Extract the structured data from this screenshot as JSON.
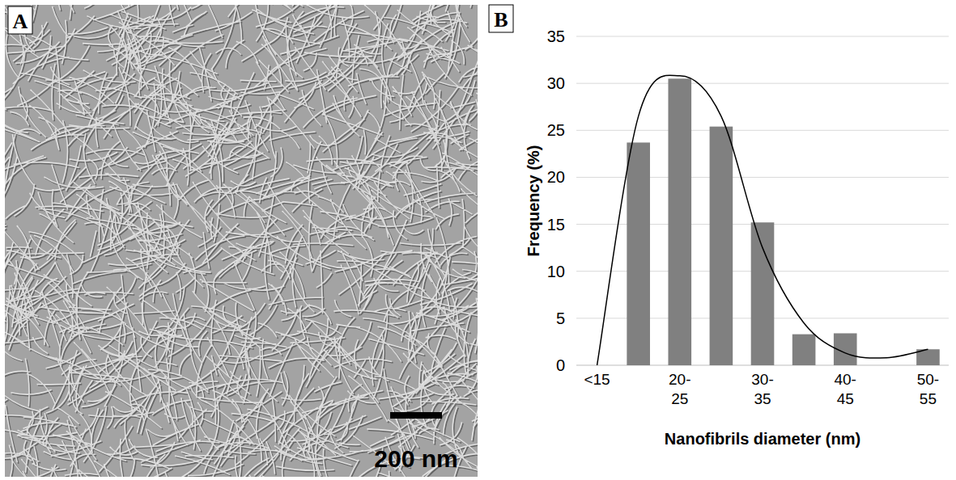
{
  "image_panel": {
    "label": "A",
    "scale_bar_label": "200 nm"
  },
  "chart_data": {
    "type": "bar",
    "label": "B",
    "x_label": "Nanofibrils diameter (nm)",
    "y_label": "Frequency (%)",
    "categories": [
      "<15",
      null,
      "20-25",
      null,
      "30-35",
      null,
      "40-45",
      null,
      "50-55"
    ],
    "series": [
      {
        "type": "bar",
        "color": "#808080",
        "values": [
          0,
          23.7,
          30.5,
          25.4,
          15.2,
          3.3,
          3.4,
          0,
          1.7
        ]
      },
      {
        "type": "line",
        "color": "#000000",
        "line_style": "solid",
        "values": [
          0,
          26.5,
          30.8,
          26.5,
          12.5,
          4.5,
          1.3,
          0.8,
          1.7
        ]
      }
    ],
    "ylim": [
      0,
      35
    ],
    "yticks": [
      0,
      5,
      10,
      15,
      20,
      25,
      30,
      35
    ],
    "grid": true
  }
}
